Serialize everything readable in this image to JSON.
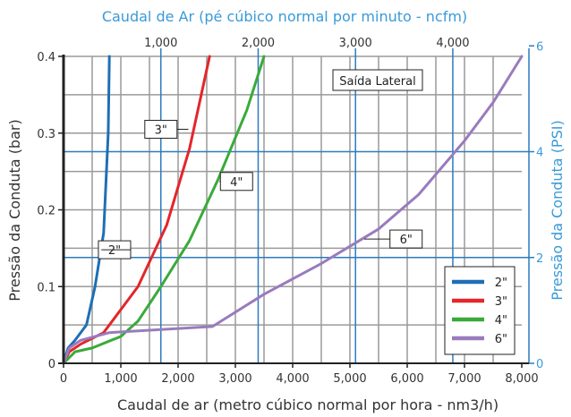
{
  "chart_data": {
    "type": "line",
    "title_top_axis": "Caudal de Ar (pé cúbico normal por minuto - ncfm)",
    "xlabel": "Caudal de ar (metro cúbico normal por hora - nm3/h)",
    "ylabel_left": "Pressão da Conduta (bar)",
    "ylabel_right": "Pressão da Conduta (PSI)",
    "annotation": "Saída Lateral",
    "xlim": [
      0,
      8000
    ],
    "ylim": [
      0,
      0.4
    ],
    "x_ticks": [
      0,
      1000,
      2000,
      3000,
      4000,
      5000,
      6000,
      7000,
      8000
    ],
    "x_tick_labels": [
      "0",
      "1,000",
      "2,000",
      "3,000",
      "4,000",
      "5,000",
      "6,000",
      "7,000",
      "8,000"
    ],
    "y_ticks": [
      0,
      0.1,
      0.2,
      0.3,
      0.4
    ],
    "y_tick_labels": [
      "0",
      "0.1",
      "0.2",
      "0.3",
      "0.4"
    ],
    "top_ticks_ncfm": [
      1000,
      2000,
      3000,
      4000
    ],
    "top_tick_labels": [
      "1,000",
      "2,000",
      "3,000",
      "4,000"
    ],
    "right_ticks_psi": [
      0,
      2,
      4,
      6
    ],
    "right_tick_labels": [
      "0",
      "2",
      "4",
      "6"
    ],
    "grid": true,
    "legend_position": "bottom-right",
    "colors": {
      "grid": "#9a9a9a",
      "secondary_axis": "#2b7bbf",
      "secondary_text": "#3a9ad9",
      "axis": "#222222"
    },
    "series": [
      {
        "name": "2\"",
        "color": "#1f6fb4",
        "label_at": [
          890,
          0.148
        ],
        "x": [
          0,
          80,
          200,
          400,
          550,
          700,
          780,
          800
        ],
        "y": [
          0,
          0.02,
          0.03,
          0.05,
          0.1,
          0.17,
          0.3,
          0.4
        ]
      },
      {
        "name": "3\"",
        "color": "#e3262a",
        "label_at": [
          1700,
          0.305
        ],
        "x": [
          0,
          100,
          300,
          700,
          1000,
          1300,
          1800,
          2200,
          2550
        ],
        "y": [
          0,
          0.015,
          0.025,
          0.04,
          0.07,
          0.1,
          0.18,
          0.28,
          0.4
        ]
      },
      {
        "name": "4\"",
        "color": "#3aaa3a",
        "label_at": [
          3020,
          0.237
        ],
        "x": [
          0,
          200,
          500,
          1000,
          1300,
          1700,
          2200,
          2700,
          3200,
          3500
        ],
        "y": [
          0,
          0.015,
          0.02,
          0.035,
          0.055,
          0.1,
          0.16,
          0.24,
          0.33,
          0.4
        ]
      },
      {
        "name": "6\"",
        "color": "#9a7bbd",
        "label_at": [
          5980,
          0.162
        ],
        "x": [
          0,
          100,
          300,
          800,
          2600,
          3500,
          4500,
          5500,
          6200,
          7000,
          7500,
          8000
        ],
        "y": [
          0,
          0.02,
          0.03,
          0.04,
          0.048,
          0.09,
          0.13,
          0.175,
          0.22,
          0.29,
          0.34,
          0.4
        ]
      }
    ]
  }
}
